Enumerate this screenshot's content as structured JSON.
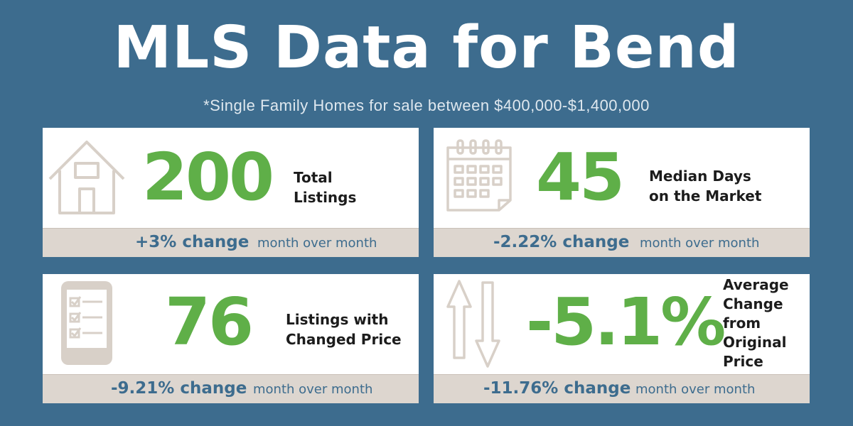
{
  "header": {
    "title": "MLS Data for Bend",
    "subtitle": "*Single Family Homes for sale between $400,000-$1,400,000"
  },
  "colors": {
    "background": "#3d6c8e",
    "accent_green": "#5faf48",
    "footer_beige": "#ddd6cf",
    "icon_stroke": "#d8d0c8"
  },
  "cards": {
    "total_listings": {
      "icon": "house-icon",
      "value": "200",
      "label_line1": "Total",
      "label_line2": "Listings",
      "change": "+3% change",
      "period": "month over month"
    },
    "median_days": {
      "icon": "calendar-icon",
      "value": "45",
      "label_line1": "Median Days",
      "label_line2": "on the Market",
      "change": "-2.22% change",
      "period": "month over month"
    },
    "changed_price": {
      "icon": "phone-checklist-icon",
      "value": "76",
      "label_line1": "Listings with",
      "label_line2": "Changed Price",
      "change": "-9.21% change",
      "period": "month over month"
    },
    "avg_change": {
      "icon": "up-down-arrows-icon",
      "value": "-5.1%",
      "label_line1": "Average",
      "label_line2": "Change",
      "label_line3": "from",
      "label_line4": "Original",
      "label_line5": "Price",
      "change": "-11.76% change",
      "period": "month over month"
    }
  }
}
